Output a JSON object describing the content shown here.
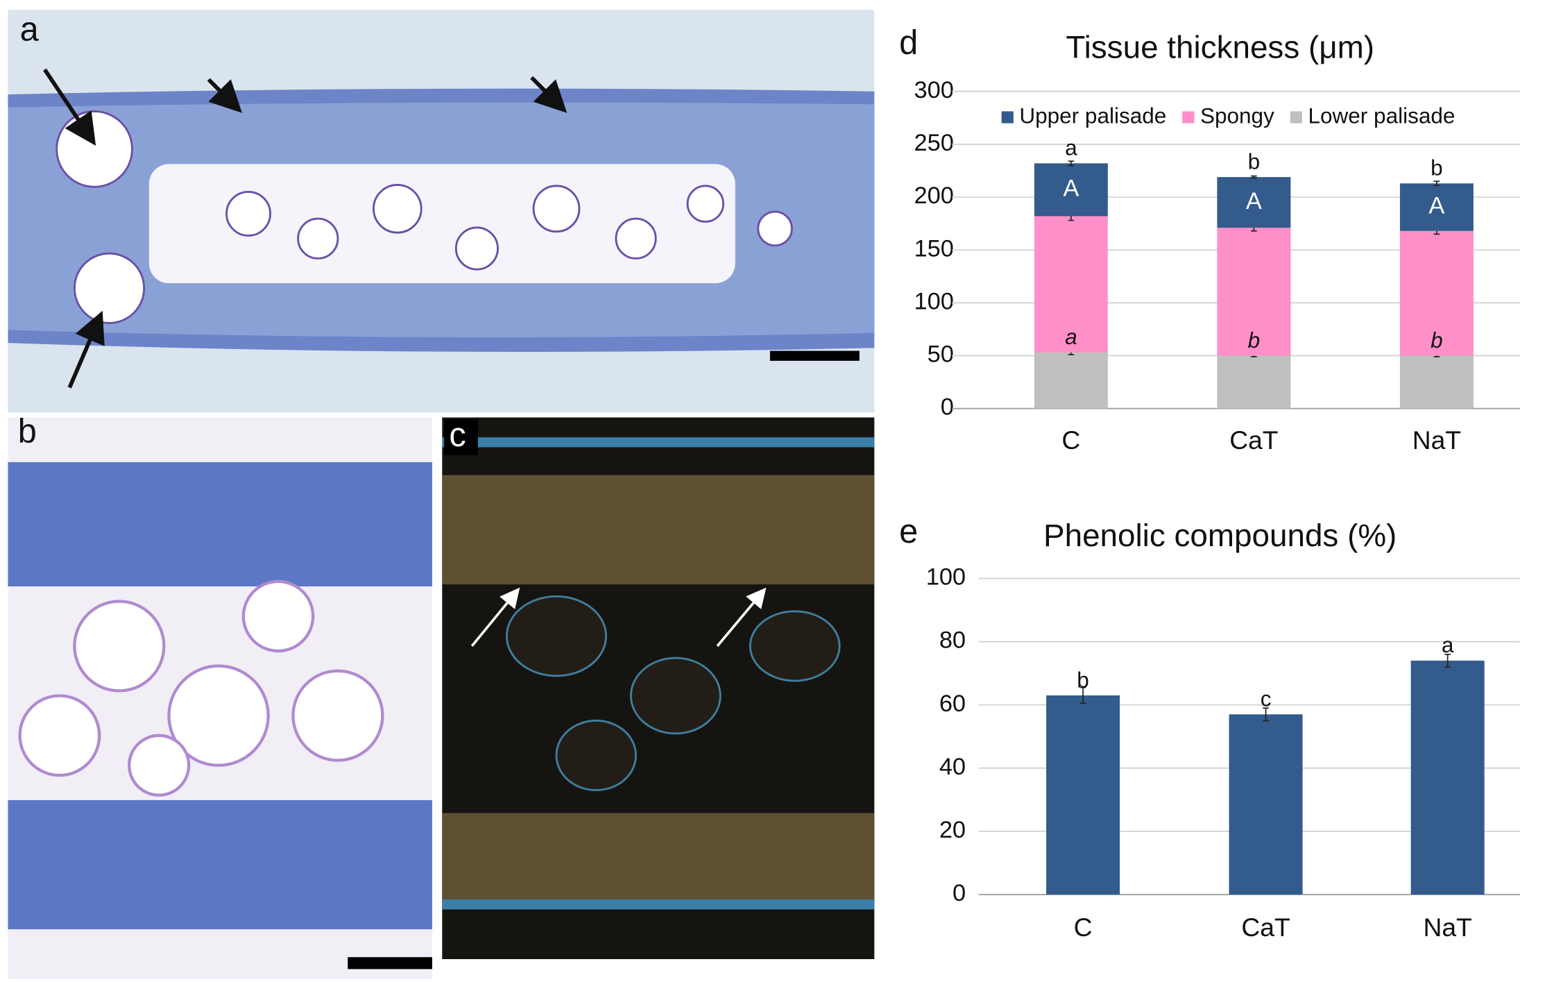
{
  "images": [
    {
      "panel_label": "a"
    },
    {
      "panel_label": "b"
    },
    {
      "panel_label": "c"
    }
  ],
  "chart_data": [
    {
      "type": "bar",
      "stacked": true,
      "panel_label": "d",
      "title": "Tissue thickness (μm)",
      "categories": [
        "C",
        "CaT",
        "NaT"
      ],
      "series": [
        {
          "name": "Lower palisade",
          "color": "#bfbfbf",
          "values": [
            53,
            50,
            50
          ],
          "errors": [
            2,
            1,
            1
          ]
        },
        {
          "name": "Spongy",
          "color": "#ff8fc8",
          "values": [
            129,
            121,
            118
          ],
          "errors": [
            4,
            3,
            3
          ]
        },
        {
          "name": "Upper palisade",
          "color": "#335b8c",
          "values": [
            50,
            48,
            45
          ],
          "errors": [
            2,
            1,
            2
          ]
        }
      ],
      "legend_order": [
        2,
        1,
        0
      ],
      "legend": "top",
      "letters_total": [
        "a",
        "b",
        "b"
      ],
      "letters_upper": [
        "A",
        "A",
        "A"
      ],
      "letters_lower": [
        "a",
        "b",
        "b"
      ],
      "ylim": [
        0,
        300
      ],
      "yticks": [
        0,
        50,
        100,
        150,
        200,
        250,
        300
      ],
      "grid": true
    },
    {
      "type": "bar",
      "stacked": false,
      "panel_label": "e",
      "title": "Phenolic compounds (%)",
      "categories": [
        "C",
        "CaT",
        "NaT"
      ],
      "series": [
        {
          "name": "Phenolic compounds",
          "color": "#335b8c",
          "values": [
            63,
            57,
            74
          ],
          "errors": [
            2.5,
            2,
            2
          ]
        }
      ],
      "letters_total": [
        "b",
        "c",
        "a"
      ],
      "ylim": [
        0,
        100
      ],
      "yticks": [
        0,
        20,
        40,
        60,
        80,
        100
      ],
      "grid": true
    }
  ]
}
